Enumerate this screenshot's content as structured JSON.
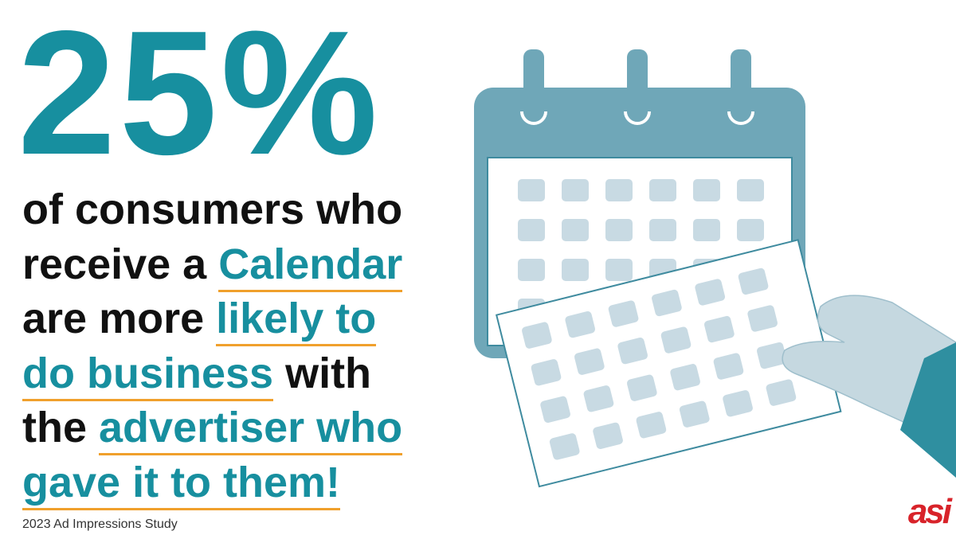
{
  "headline": "25%",
  "lines": [
    [
      {
        "text": "of consumers who",
        "emphasis": false
      }
    ],
    [
      {
        "text": "receive a ",
        "emphasis": false
      },
      {
        "text": "Calendar",
        "emphasis": true
      }
    ],
    [
      {
        "text": "are more ",
        "emphasis": false
      },
      {
        "text": "likely to",
        "emphasis": true
      }
    ],
    [
      {
        "text": "do business",
        "emphasis": true
      },
      {
        "text": " with",
        "emphasis": false
      }
    ],
    [
      {
        "text": "the ",
        "emphasis": false
      },
      {
        "text": "advertiser who",
        "emphasis": true
      }
    ],
    [
      {
        "text": "gave it to them!",
        "emphasis": true
      }
    ]
  ],
  "source": "2023 Ad Impressions Study",
  "logo": "asi"
}
